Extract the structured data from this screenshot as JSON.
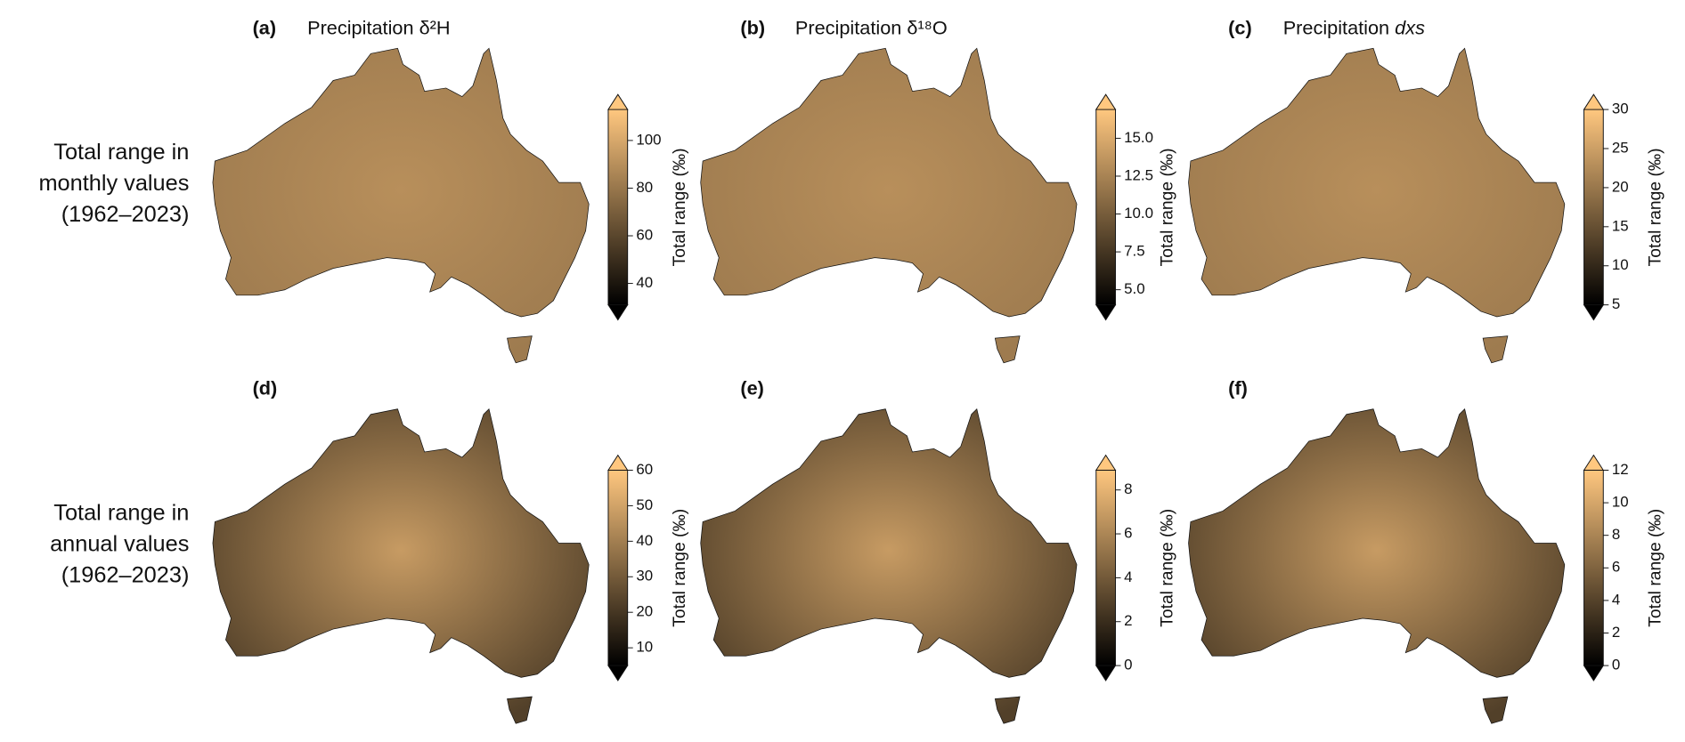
{
  "row_labels": [
    [
      "Total range in",
      "monthly values",
      "(1962–2023)"
    ],
    [
      "Total range in",
      "annual values",
      "(1962–2023)"
    ]
  ],
  "colormap": [
    "#000000",
    "#ffc77f"
  ],
  "chart_data": [
    {
      "type": "map",
      "panel_label": "(a)",
      "title": "Precipitation δ²H",
      "colorbar": {
        "label": "Total range (‰)",
        "lim": [
          31,
          113
        ],
        "ticks": [
          40,
          60,
          80,
          100
        ],
        "extend": "both"
      }
    },
    {
      "type": "map",
      "panel_label": "(b)",
      "title": "Precipitation δ¹⁸O",
      "colorbar": {
        "label": "Total range (‰)",
        "lim": [
          4,
          16.9
        ],
        "ticks": [
          {
            "value": 5,
            "label": "5.0"
          },
          7.5,
          {
            "value": 10,
            "label": "10.0"
          },
          12.5,
          {
            "value": 15,
            "label": "15.0"
          }
        ],
        "extend": "both"
      }
    },
    {
      "type": "map",
      "panel_label": "(c)",
      "title": "Precipitation",
      "title_variable": "dxs",
      "colorbar": {
        "label": "Total range (‰)",
        "lim": [
          5,
          30
        ],
        "ticks": [
          5,
          10,
          15,
          20,
          25,
          30
        ],
        "extend": "both"
      }
    },
    {
      "type": "map",
      "panel_label": "(d)",
      "colorbar": {
        "label": "Total range (‰)",
        "lim": [
          5,
          60
        ],
        "ticks": [
          10,
          20,
          30,
          40,
          50,
          60
        ],
        "extend": "both"
      }
    },
    {
      "type": "map",
      "panel_label": "(e)",
      "colorbar": {
        "label": "Total range (‰)",
        "lim": [
          0,
          8.9
        ],
        "ticks": [
          0,
          2,
          4,
          6,
          8
        ],
        "extend": "both"
      }
    },
    {
      "type": "map",
      "panel_label": "(f)",
      "colorbar": {
        "label": "Total range (‰)",
        "lim": [
          0,
          12
        ],
        "ticks": [
          0,
          2,
          4,
          6,
          8,
          10,
          12
        ],
        "extend": "both"
      }
    }
  ]
}
